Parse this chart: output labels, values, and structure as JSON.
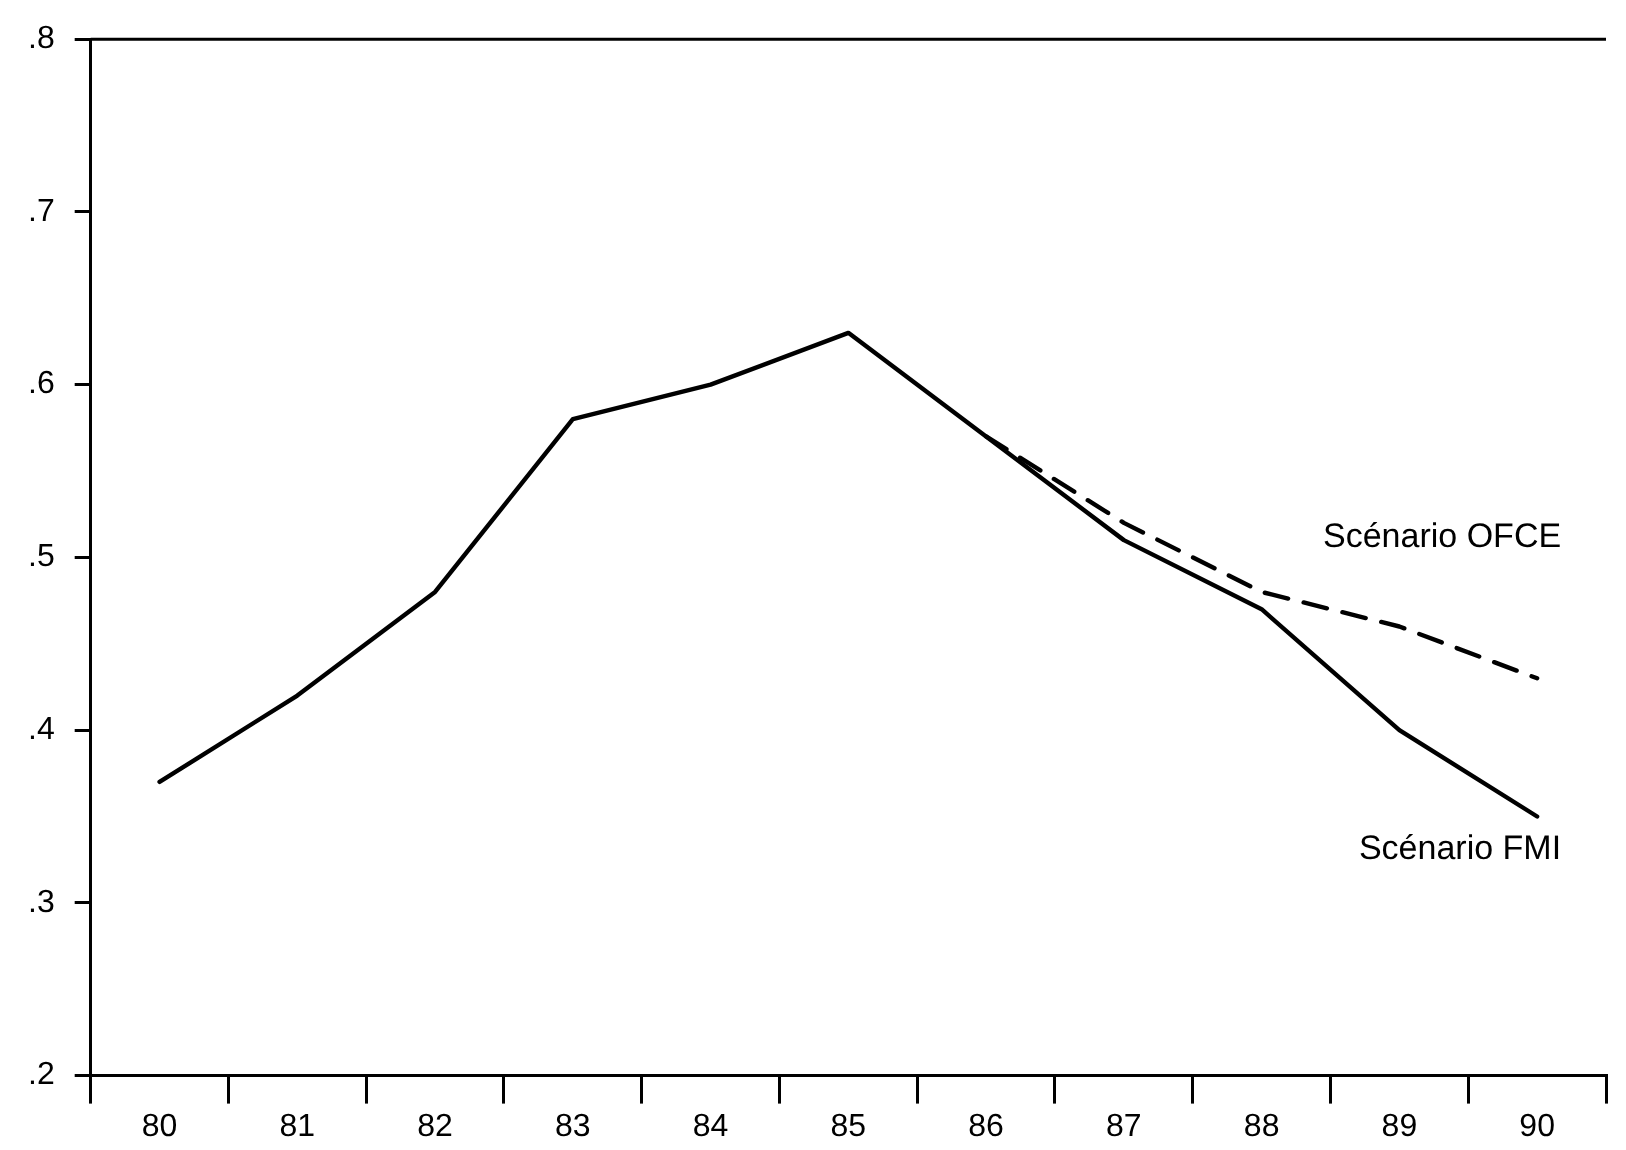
{
  "chart_data": {
    "type": "line",
    "categories": [
      "80",
      "81",
      "82",
      "83",
      "84",
      "85",
      "86",
      "87",
      "88",
      "89",
      "90"
    ],
    "series": [
      {
        "name": "Scénario FMI",
        "color": "#000000",
        "line_style": "solid",
        "values": [
          0.37,
          0.42,
          0.48,
          0.58,
          0.6,
          0.63,
          0.57,
          0.51,
          0.47,
          0.4,
          0.35
        ]
      },
      {
        "name": "Scénario OFCE",
        "color": "#000000",
        "line_style": "dashed",
        "values": [
          null,
          null,
          null,
          null,
          null,
          null,
          0.57,
          0.52,
          0.48,
          0.46,
          0.43
        ]
      }
    ],
    "ylim": [
      0.2,
      0.8
    ],
    "yticks": [
      {
        "value": 0.2,
        "label": ".2"
      },
      {
        "value": 0.3,
        "label": ".3"
      },
      {
        "value": 0.4,
        "label": ".4"
      },
      {
        "value": 0.5,
        "label": ".5"
      },
      {
        "value": 0.6,
        "label": ".6"
      },
      {
        "value": 0.7,
        "label": ".7"
      },
      {
        "value": 0.8,
        "label": ".8"
      }
    ],
    "grid": false,
    "legend": false,
    "marker": "none"
  }
}
